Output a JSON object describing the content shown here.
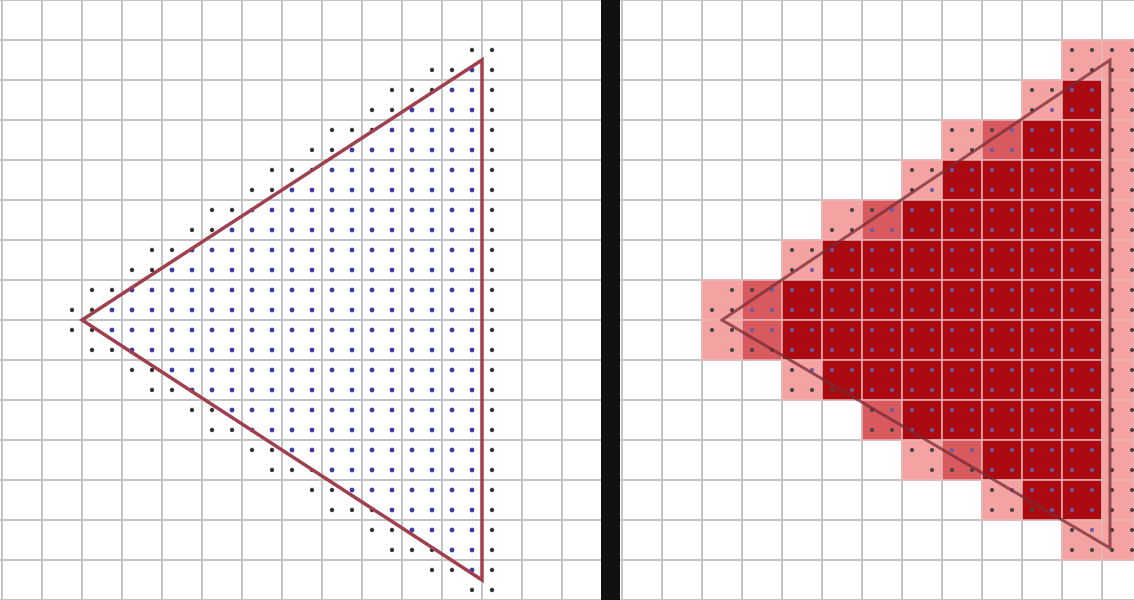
{
  "diagram": {
    "description_tag": "triangle-rasterization-comparison",
    "grid": {
      "cols": 28,
      "rows": 15
    },
    "colors": {
      "background": "#ffffff",
      "grid_line": "#c4c4c4",
      "triangle_edge": "#a0404e",
      "sample_inside": "#3b3aa8",
      "sample_outside": "#333333",
      "divider": "#111111",
      "pixel_full": "#aa0a10",
      "pixel_partial_light": "#f5a2a2",
      "pixel_partial_mid": "#d85a5e",
      "pixel_grid_line": "#e9b6b6"
    },
    "left_panel": {
      "name": "supersampled-triangle",
      "triangle": {
        "apex": [
          2,
          8
        ],
        "top": [
          12,
          1.5
        ],
        "bottom": [
          12,
          14.5
        ]
      },
      "samples_per_cell": 2
    },
    "right_panel": {
      "name": "rasterized-coverage-triangle",
      "triangle": {
        "apex": [
          2.5,
          8
        ],
        "top": [
          12.2,
          1.5
        ],
        "bottom": [
          12.2,
          13.7
        ]
      },
      "samples_per_cell": 2
    }
  }
}
